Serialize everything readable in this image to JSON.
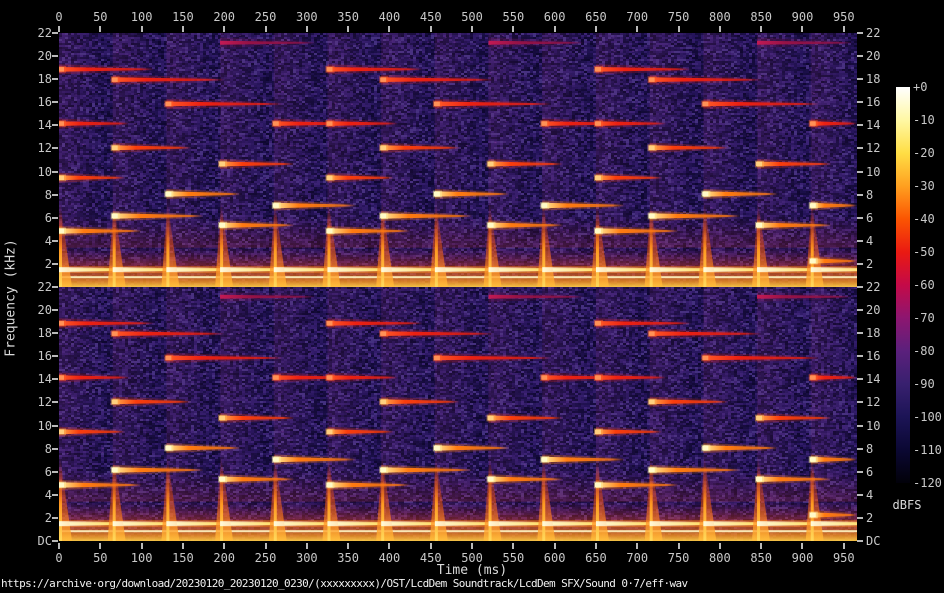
{
  "title": "https://archive·org/download/20230120_20230120_0230/(xxxxxxxxx)/OST/LcdDem Soundtrack/LcdDem SFX/Sound 0·7/eff·wav",
  "axes": {
    "x_label": "Time (ms)",
    "y_label": "Frequency (kHz)",
    "time_ticks": [
      0,
      50,
      100,
      150,
      200,
      250,
      300,
      350,
      400,
      450,
      500,
      550,
      600,
      650,
      700,
      750,
      800,
      850,
      900,
      950
    ],
    "freq_ticks": [
      22,
      20,
      18,
      16,
      14,
      12,
      10,
      8,
      6,
      4,
      2
    ],
    "dc_label": "DC"
  },
  "colorbar": {
    "unit": "dBFS",
    "tick_labels": [
      "+0",
      "-10",
      "-20",
      "-30",
      "-40",
      "-50",
      "-60",
      "-70",
      "-80",
      "-90",
      "-100",
      "-110",
      "-120"
    ],
    "tick_values": [
      0,
      -10,
      -20,
      -30,
      -40,
      -50,
      -60,
      -70,
      -80,
      -90,
      -100,
      -110,
      -120
    ],
    "colormap": [
      "#ffffff",
      "#fff8a4",
      "#ffde45",
      "#ffa020",
      "#fb5502",
      "#ea1a12",
      "#c40a48",
      "#8d1670",
      "#5b207c",
      "#38206f",
      "#1c1456",
      "#0b0833",
      "#020109"
    ]
  },
  "chart_data": {
    "type": "heatmap",
    "subtype": "stereo-spectrogram",
    "channels": 2,
    "x_range_ms": [
      0,
      966
    ],
    "freq_range_khz": [
      0,
      22
    ],
    "dynamic_range_dbfs": [
      0,
      -120
    ],
    "background_noise_dbfs": -90,
    "low_band": {
      "bright_lines_khz": [
        1.5,
        0.85
      ],
      "glow_top_khz": 3.4
    },
    "note_interval_ms": 65,
    "notes": [
      {
        "t": 0,
        "partials": [
          [
            18.9,
            115,
            "high"
          ],
          [
            14.2,
            85,
            "high"
          ],
          [
            9.5,
            80,
            "mid"
          ],
          [
            4.9,
            100,
            "bright"
          ]
        ]
      },
      {
        "t": 65,
        "partials": [
          [
            18.0,
            135,
            "high"
          ],
          [
            12.1,
            95,
            "mid"
          ],
          [
            6.2,
            110,
            "bright"
          ]
        ]
      },
      {
        "t": 130,
        "partials": [
          [
            15.9,
            140,
            "high"
          ],
          [
            8.1,
            90,
            "bright"
          ]
        ]
      },
      {
        "t": 195,
        "partials": [
          [
            21.2,
            115,
            "faint"
          ],
          [
            10.7,
            90,
            "mid"
          ],
          [
            5.4,
            90,
            "bright"
          ]
        ]
      },
      {
        "t": 260,
        "partials": [
          [
            14.2,
            100,
            "high"
          ],
          [
            7.1,
            100,
            "bright"
          ]
        ]
      },
      {
        "t": 325,
        "partials": [
          [
            18.9,
            115,
            "high"
          ],
          [
            14.2,
            85,
            "high"
          ],
          [
            9.5,
            80,
            "mid"
          ],
          [
            4.9,
            100,
            "bright"
          ]
        ]
      },
      {
        "t": 390,
        "partials": [
          [
            18.0,
            135,
            "high"
          ],
          [
            12.1,
            95,
            "mid"
          ],
          [
            6.2,
            110,
            "bright"
          ]
        ]
      },
      {
        "t": 455,
        "partials": [
          [
            15.9,
            140,
            "high"
          ],
          [
            8.1,
            90,
            "bright"
          ]
        ]
      },
      {
        "t": 520,
        "partials": [
          [
            21.2,
            115,
            "faint"
          ],
          [
            10.7,
            90,
            "mid"
          ],
          [
            5.4,
            90,
            "bright"
          ]
        ]
      },
      {
        "t": 585,
        "partials": [
          [
            14.2,
            100,
            "high"
          ],
          [
            7.1,
            100,
            "bright"
          ]
        ]
      },
      {
        "t": 650,
        "partials": [
          [
            18.9,
            115,
            "high"
          ],
          [
            14.2,
            85,
            "high"
          ],
          [
            9.5,
            80,
            "mid"
          ],
          [
            4.9,
            100,
            "bright"
          ]
        ]
      },
      {
        "t": 715,
        "partials": [
          [
            18.0,
            135,
            "high"
          ],
          [
            12.1,
            95,
            "mid"
          ],
          [
            6.2,
            110,
            "bright"
          ]
        ]
      },
      {
        "t": 780,
        "partials": [
          [
            15.9,
            140,
            "high"
          ],
          [
            8.1,
            90,
            "bright"
          ]
        ]
      },
      {
        "t": 845,
        "partials": [
          [
            21.2,
            115,
            "faint"
          ],
          [
            10.7,
            90,
            "mid"
          ],
          [
            5.4,
            90,
            "bright"
          ]
        ]
      },
      {
        "t": 910,
        "partials": [
          [
            14.2,
            100,
            "high"
          ],
          [
            7.1,
            100,
            "bright"
          ],
          [
            2.3,
            75,
            "bright"
          ]
        ]
      }
    ]
  },
  "noise_palette": [
    "#0e0730",
    "#170d42",
    "#1f1150",
    "#28175e",
    "#311c6a",
    "#3a2274",
    "#24135a",
    "#1a0f48",
    "#2e1a66",
    "#43307f",
    "#120a38",
    "#150b3d"
  ],
  "noise_speck": "#7a3a9f"
}
